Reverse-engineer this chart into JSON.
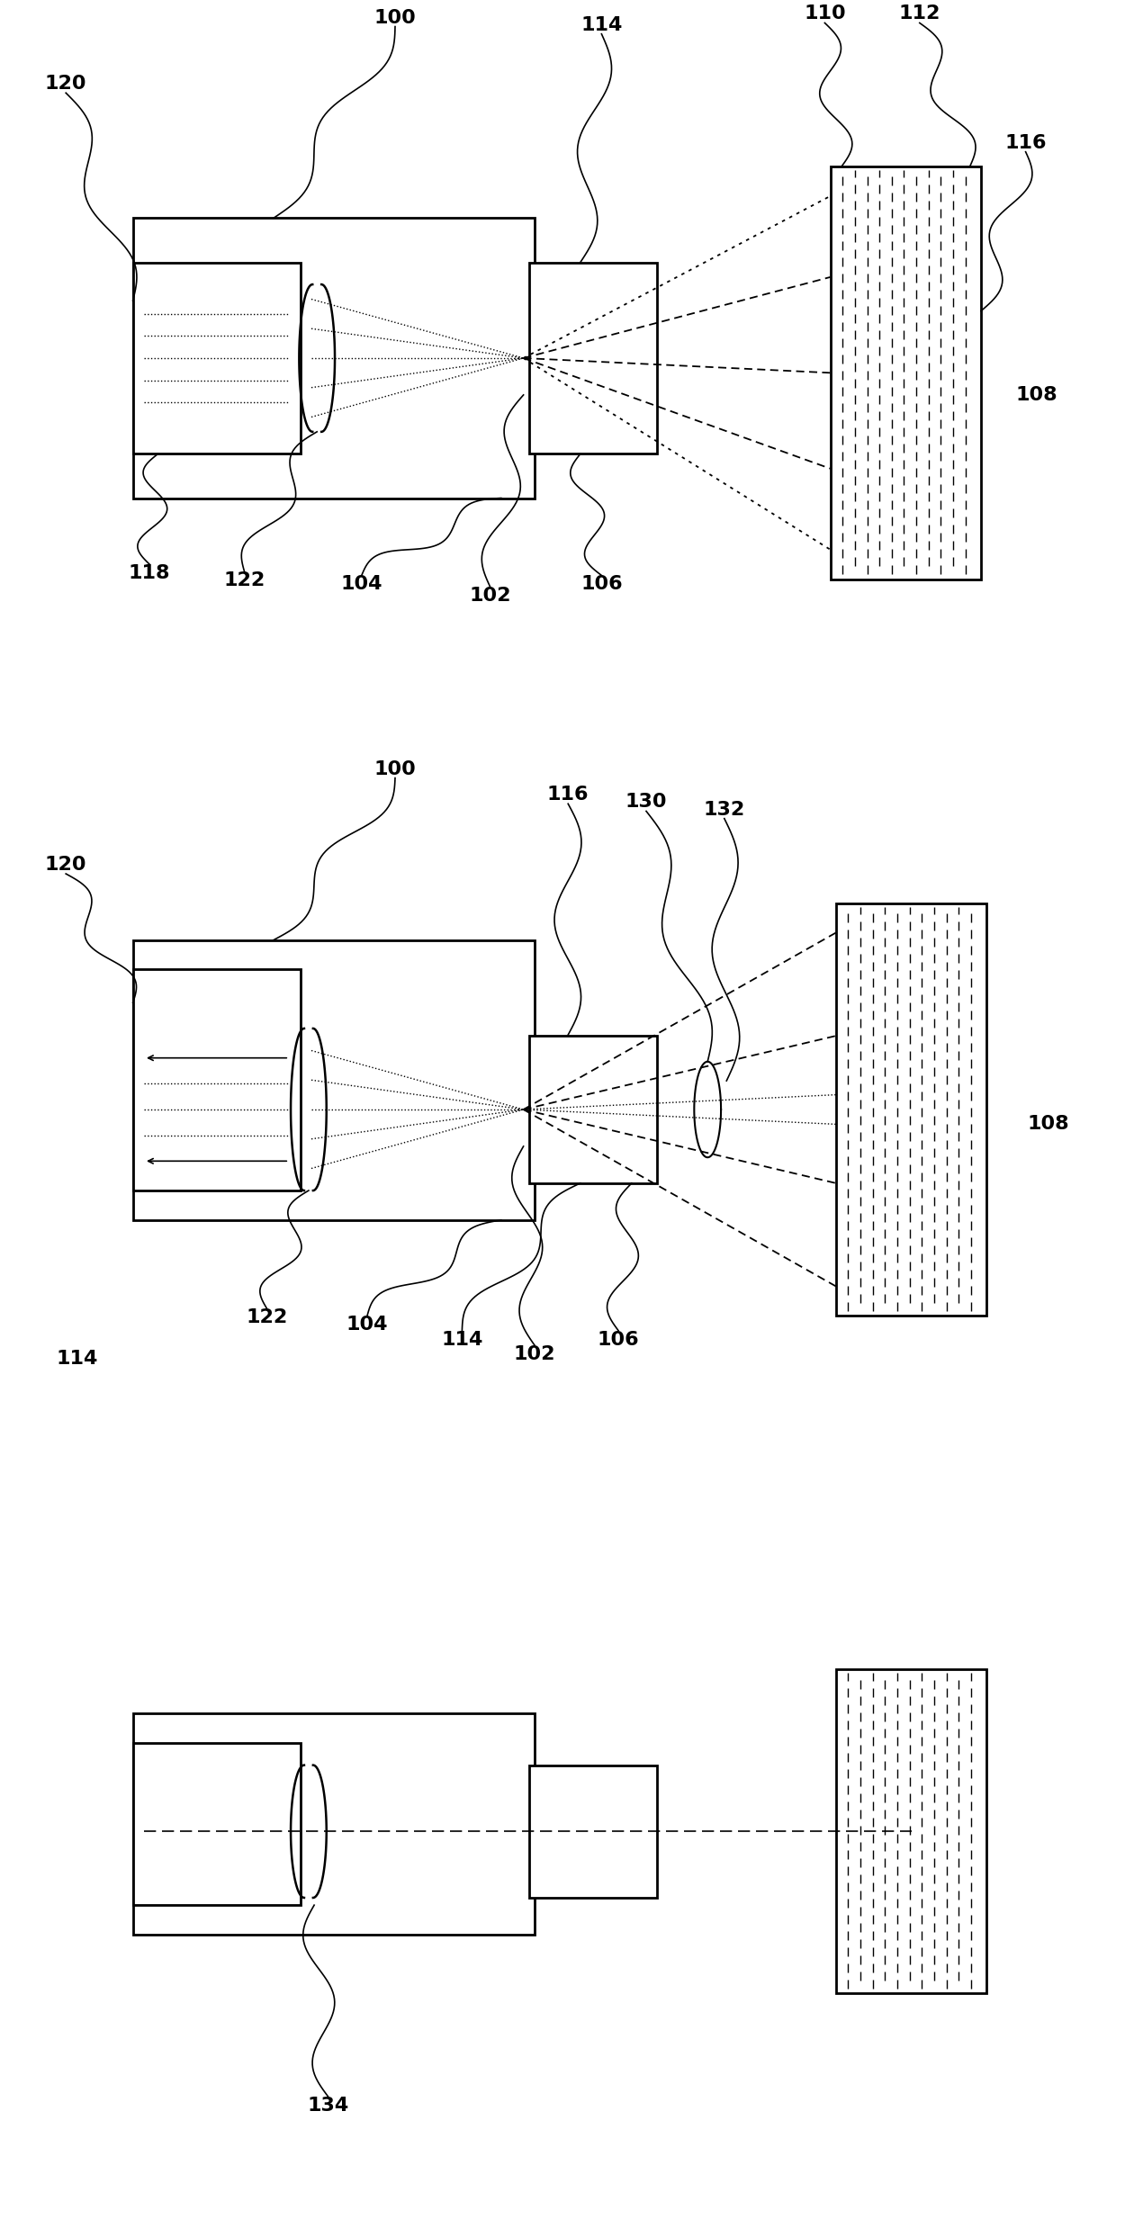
{
  "bg_color": "#ffffff",
  "line_color": "#000000",
  "fig_width": 12.4,
  "fig_height": 24.56,
  "lw": 2.0,
  "lw_thin": 1.2,
  "lw_ray": 1.3
}
